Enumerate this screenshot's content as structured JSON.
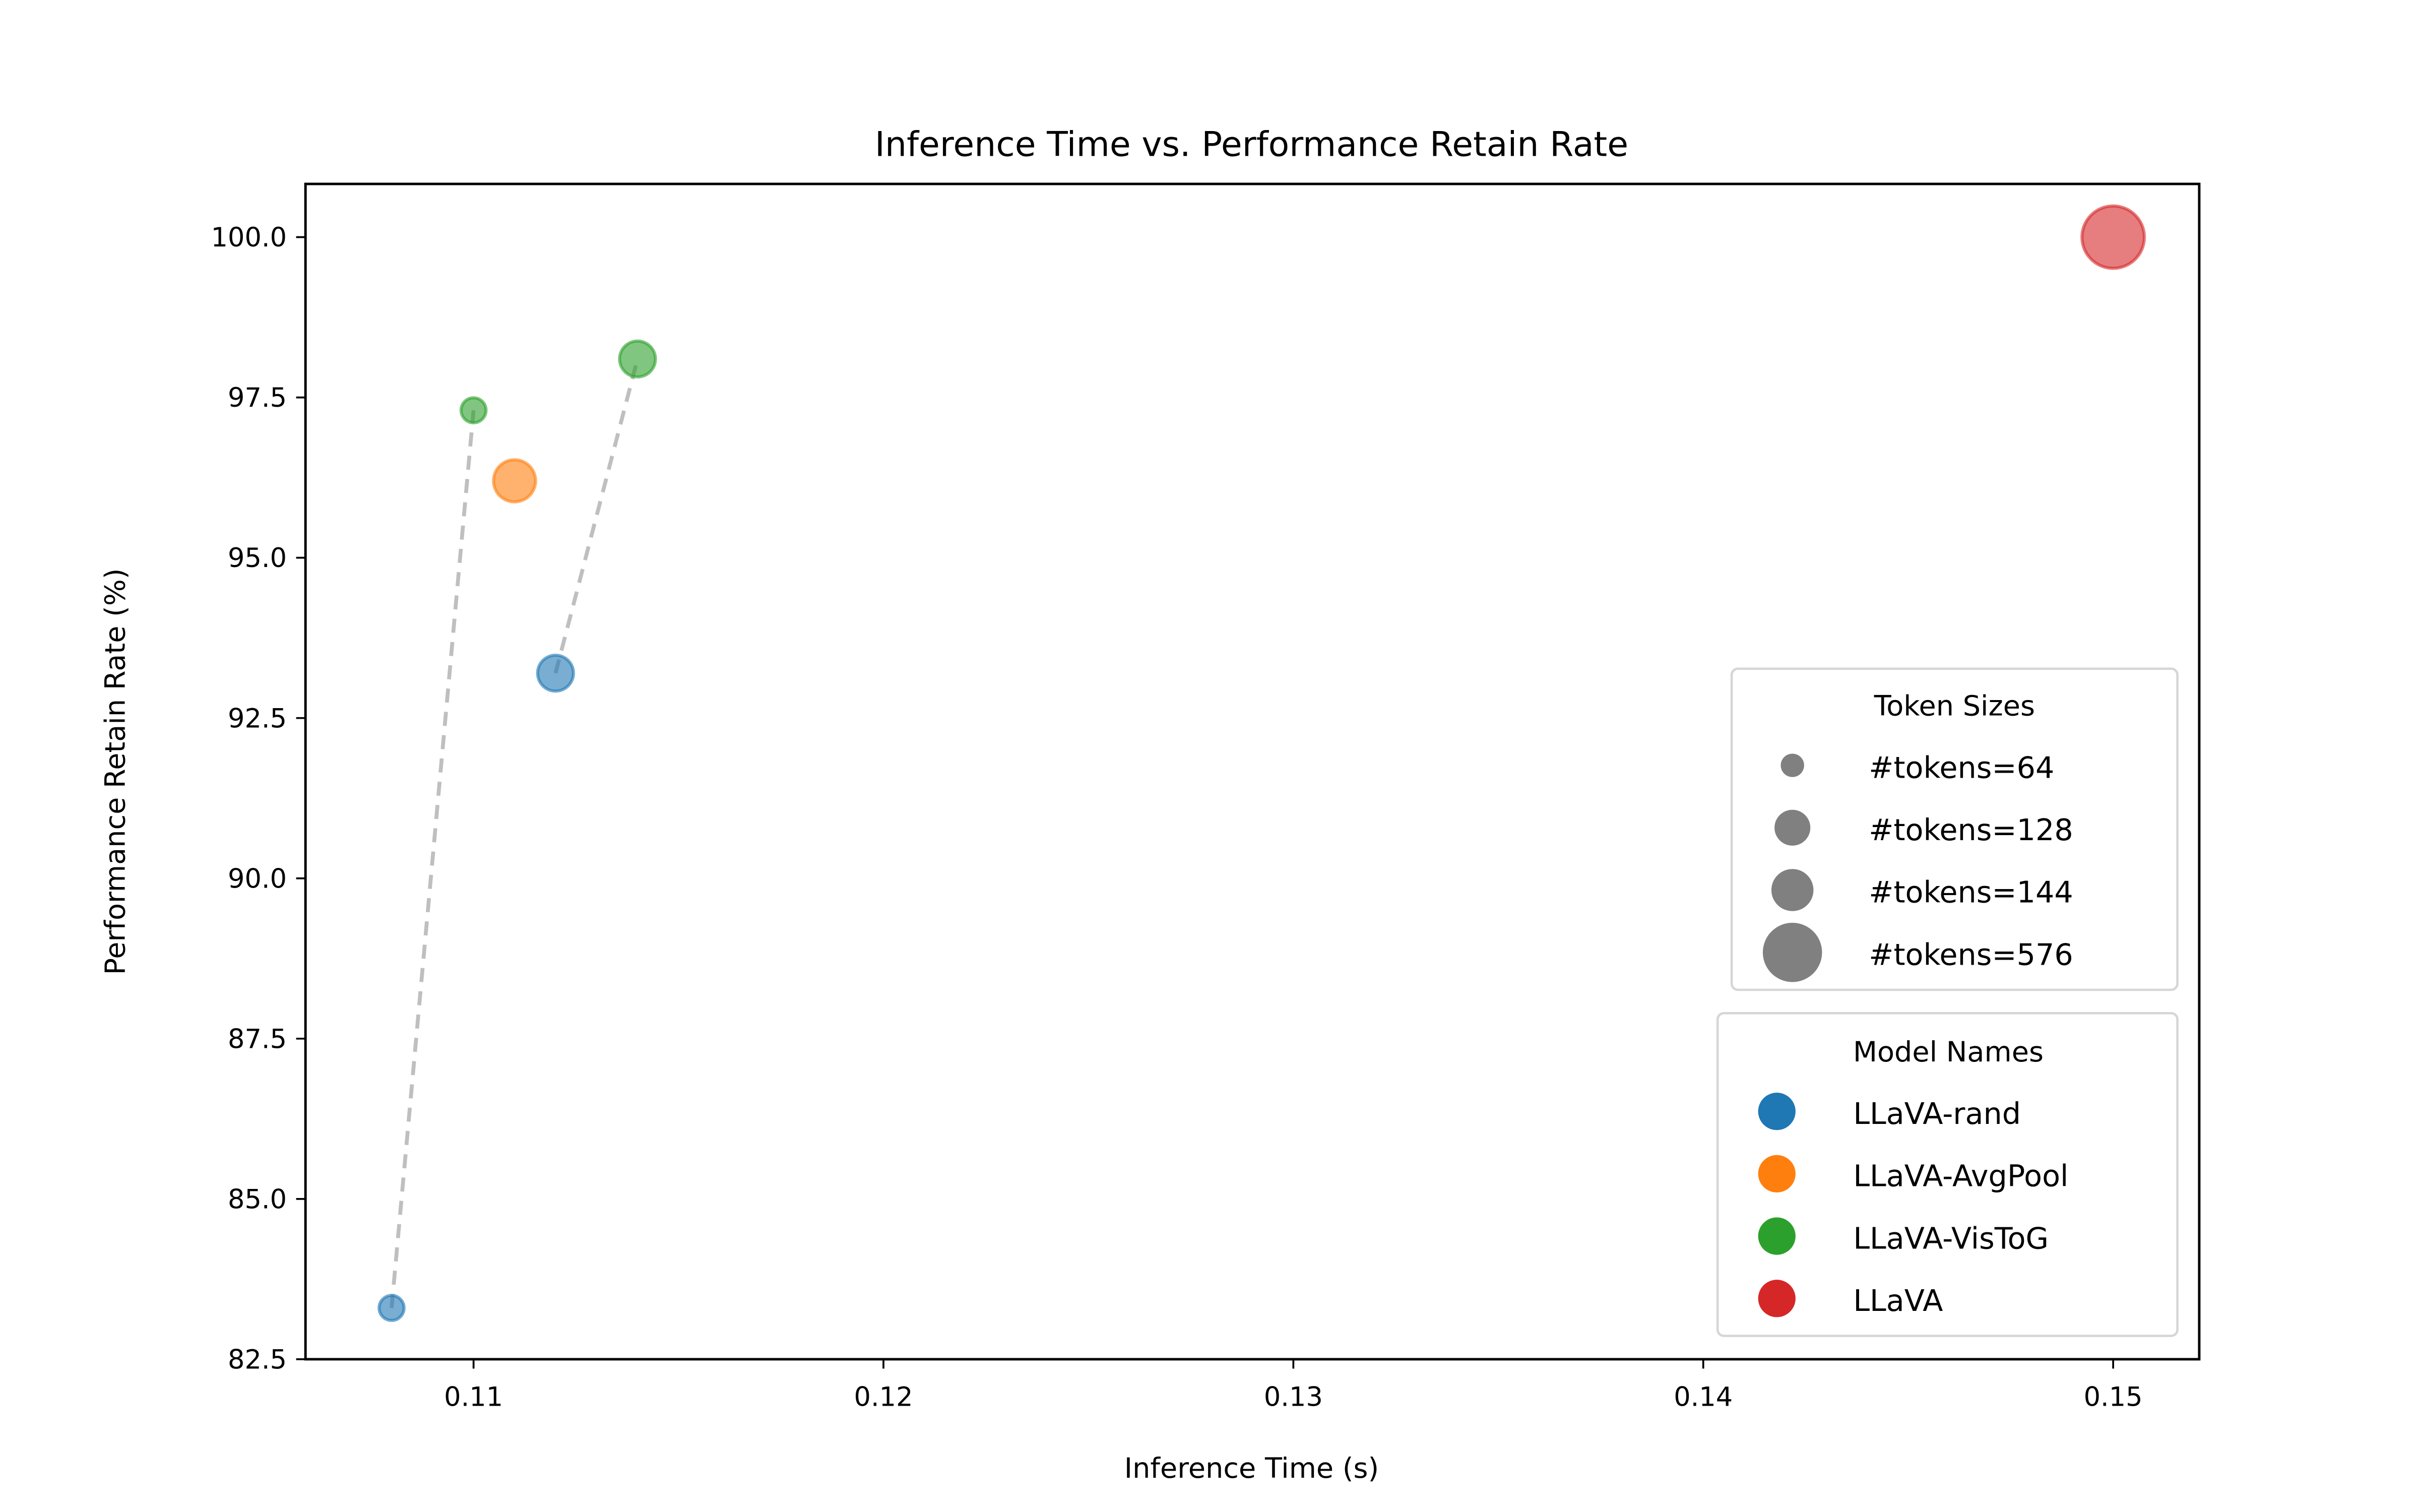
{
  "chart_data": {
    "type": "scatter",
    "title": "Inference Time vs. Performance Retain Rate",
    "xlabel": "Inference Time (s)",
    "ylabel": "Performance Retain Rate (%)",
    "xlim": [
      0.1059,
      0.1521
    ],
    "ylim": [
      82.5,
      100.83
    ],
    "xticks": [
      0.11,
      0.12,
      0.13,
      0.14,
      0.15
    ],
    "xtick_labels": [
      "0.11",
      "0.12",
      "0.13",
      "0.14",
      "0.15"
    ],
    "yticks": [
      82.5,
      85.0,
      87.5,
      90.0,
      92.5,
      95.0,
      97.5,
      100.0
    ],
    "ytick_labels": [
      "82.5",
      "85.0",
      "87.5",
      "90.0",
      "92.5",
      "95.0",
      "97.5",
      "100.0"
    ],
    "grid": false,
    "points": [
      {
        "model": "LLaVA-rand",
        "tokens": 64,
        "x": 0.108,
        "y": 83.3
      },
      {
        "model": "LLaVA-VisToG",
        "tokens": 64,
        "x": 0.11,
        "y": 97.3
      },
      {
        "model": "LLaVA-AvgPool",
        "tokens": 144,
        "x": 0.111,
        "y": 96.2
      },
      {
        "model": "LLaVA-rand",
        "tokens": 128,
        "x": 0.112,
        "y": 93.2
      },
      {
        "model": "LLaVA-VisToG",
        "tokens": 128,
        "x": 0.114,
        "y": 98.1
      },
      {
        "model": "LLaVA",
        "tokens": 576,
        "x": 0.15,
        "y": 100.0
      }
    ],
    "connectors": [
      {
        "from": [
          0.108,
          83.3
        ],
        "to": [
          0.11,
          97.3
        ]
      },
      {
        "from": [
          0.112,
          93.2
        ],
        "to": [
          0.114,
          98.1
        ]
      }
    ],
    "connector_color": "#bfbfbf",
    "marker_alpha": 0.6,
    "legend_sizes": {
      "title": "Token Sizes",
      "placement": "center-right",
      "entries": [
        {
          "tokens": 64,
          "label": "#tokens=64"
        },
        {
          "tokens": 128,
          "label": "#tokens=128"
        },
        {
          "tokens": 144,
          "label": "#tokens=144"
        },
        {
          "tokens": 576,
          "label": "#tokens=576"
        }
      ]
    },
    "legend_models": {
      "title": "Model Names",
      "placement": "lower-right",
      "entries": [
        {
          "label": "LLaVA-rand",
          "color": "#1f77b4"
        },
        {
          "label": "LLaVA-AvgPool",
          "color": "#ff7f0e"
        },
        {
          "label": "LLaVA-VisToG",
          "color": "#2ca02c"
        },
        {
          "label": "LLaVA",
          "color": "#d62728"
        }
      ]
    }
  }
}
